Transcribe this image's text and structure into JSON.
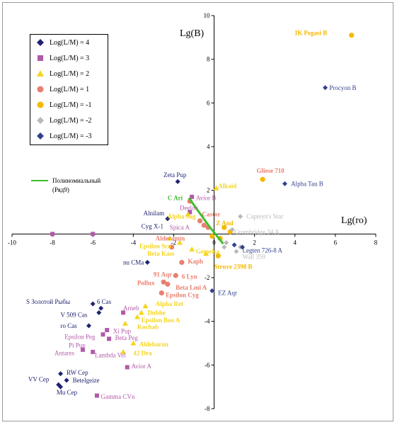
{
  "chart_data": {
    "type": "scatter",
    "x_axis_title": "Lg(ro)",
    "y_axis_title": "Lg(B)",
    "xlim": [
      -10,
      8
    ],
    "ylim": [
      -8,
      10
    ],
    "x_ticks": [
      -10,
      -8,
      -6,
      -4,
      -2,
      0,
      2,
      4,
      6,
      8
    ],
    "y_ticks": [
      -8,
      -6,
      -4,
      -2,
      0,
      2,
      4,
      6,
      8,
      10
    ],
    "x_tick_labels": [
      "-10",
      "-8",
      "-6",
      "-4",
      "-2",
      "0",
      "2",
      "4",
      "6",
      "8"
    ],
    "y_tick_labels": [
      "-8",
      "-6",
      "-4",
      "-2",
      "0",
      "2",
      "4",
      "6",
      "8",
      "10"
    ],
    "grid": false,
    "legend_position": "top-left",
    "series": [
      {
        "name": "Log(L/M) = 4",
        "marker": "diamond",
        "color": "#1f2370",
        "points": [
          [
            -1.8,
            2.4
          ],
          [
            -2.3,
            0.7
          ],
          [
            -3.3,
            -1.3
          ],
          [
            -6.0,
            -3.2
          ],
          [
            -5.6,
            -3.4
          ],
          [
            -5.7,
            -3.6
          ],
          [
            -6.2,
            -4.2
          ],
          [
            -7.6,
            -6.4
          ],
          [
            -7.3,
            -6.7
          ],
          [
            -7.7,
            -6.9
          ],
          [
            -7.6,
            -7.0
          ]
        ]
      },
      {
        "name": "Log(L/M) = 3",
        "marker": "square",
        "color": "#b05ba7",
        "points": [
          [
            -1.1,
            1.7
          ],
          [
            -1.2,
            1.0
          ],
          [
            -4.5,
            -3.6
          ],
          [
            -5.3,
            -4.4
          ],
          [
            -5.5,
            -4.6
          ],
          [
            -5.2,
            -4.8
          ],
          [
            -6.5,
            -5.3
          ],
          [
            -6.0,
            -5.4
          ],
          [
            -4.3,
            -6.1
          ],
          [
            -5.8,
            -7.4
          ],
          [
            -8.0,
            0.0
          ],
          [
            -6.0,
            0.0
          ]
        ]
      },
      {
        "name": "Log(L/M) = 2",
        "marker": "triangle",
        "color": "#f5d51e",
        "points": [
          [
            0.1,
            2.1
          ],
          [
            -1.3,
            0.9
          ],
          [
            -2.2,
            -0.2
          ],
          [
            -1.7,
            -0.4
          ],
          [
            -1.1,
            -0.7
          ],
          [
            -0.4,
            -0.9
          ],
          [
            -3.4,
            -3.3
          ],
          [
            -3.6,
            -3.6
          ],
          [
            -3.8,
            -3.8
          ],
          [
            -4.4,
            -4.1
          ],
          [
            -4.0,
            -5.0
          ],
          [
            -4.5,
            -5.4
          ]
        ]
      },
      {
        "name": "Log(L/M) = 1",
        "marker": "circle",
        "color": "#e8806f",
        "points": [
          [
            -1.2,
            1.5
          ],
          [
            -0.7,
            0.6
          ],
          [
            -0.5,
            0.4
          ],
          [
            -2.1,
            -0.6
          ],
          [
            -1.6,
            -1.3
          ],
          [
            -1.9,
            -1.9
          ],
          [
            -2.5,
            -2.2
          ],
          [
            -2.3,
            -2.3
          ],
          [
            -2.6,
            -2.7
          ],
          [
            -0.3,
            0.3
          ]
        ]
      },
      {
        "name": "Log(L/M) = -1",
        "marker": "circle",
        "color": "#f5b800",
        "points": [
          [
            6.8,
            9.1
          ],
          [
            2.4,
            2.5
          ],
          [
            0.5,
            0.3
          ],
          [
            0.3,
            -0.2
          ],
          [
            0.2,
            -1.0
          ],
          [
            0.8,
            0.1
          ],
          [
            -0.1,
            -0.1
          ]
        ]
      },
      {
        "name": "Log(L/M) = -2",
        "marker": "diamond",
        "color": "#b9b9b9",
        "points": [
          [
            1.3,
            0.8
          ],
          [
            0.9,
            0.2
          ],
          [
            0.6,
            -0.4
          ],
          [
            1.1,
            -0.8
          ],
          [
            1.3,
            -0.6
          ],
          [
            0.5,
            -0.6
          ]
        ]
      },
      {
        "name": "Log(L/M) = -3",
        "marker": "diamond",
        "color": "#34418f",
        "points": [
          [
            5.5,
            6.7
          ],
          [
            3.5,
            2.3
          ],
          [
            1.0,
            -0.5
          ],
          [
            1.4,
            -0.6
          ],
          [
            -0.1,
            -2.6
          ]
        ]
      }
    ],
    "trendline": {
      "name": "Полиномиальный (Ряд9)",
      "color": "#3cbf2a",
      "points": [
        [
          -1.25,
          1.65
        ],
        [
          -0.9,
          1.2
        ],
        [
          -0.55,
          0.75
        ],
        [
          -0.2,
          0.3
        ],
        [
          0.15,
          -0.1
        ],
        [
          0.45,
          -0.45
        ]
      ]
    },
    "annotations": [
      {
        "text": "IK Pegasi B",
        "x": 4.0,
        "y": 9.2,
        "color": "#f5b800",
        "bold": true
      },
      {
        "text": "Procyon B",
        "x": 5.7,
        "y": 6.7,
        "color": "#34418f"
      },
      {
        "text": "Gliese 710",
        "x": 2.1,
        "y": 2.9,
        "color": "#e8806f",
        "bold": true
      },
      {
        "text": "Alpha Tau B",
        "x": 3.8,
        "y": 2.3,
        "color": "#34418f"
      },
      {
        "text": "Zeta Pup",
        "x": -2.5,
        "y": 2.7,
        "color": "#1f2370"
      },
      {
        "text": "Alkaid",
        "x": 0.2,
        "y": 2.2,
        "color": "#f5d51e",
        "bold": true
      },
      {
        "text": "C Ari",
        "x": -2.3,
        "y": 1.65,
        "color": "#3cbf2a",
        "bold": true
      },
      {
        "text": "Avior B",
        "x": -0.9,
        "y": 1.65,
        "color": "#b05ba7"
      },
      {
        "text": "Deelox",
        "x": -1.7,
        "y": 1.2,
        "color": "#b05ba7"
      },
      {
        "text": "Castor",
        "x": -0.6,
        "y": 0.9,
        "color": "#e8806f",
        "bold": true
      },
      {
        "text": "Alnilam",
        "x": -3.5,
        "y": 0.95,
        "color": "#1f2370"
      },
      {
        "text": "Alpha Sag",
        "x": -2.3,
        "y": 0.8,
        "color": "#f5d51e",
        "bold": true
      },
      {
        "text": "Z And",
        "x": 0.1,
        "y": 0.5,
        "color": "#f5b800",
        "bold": true
      },
      {
        "text": "Capteyn's Star",
        "x": 1.6,
        "y": 0.8,
        "color": "#b9b9b9"
      },
      {
        "text": "Cyg X-1",
        "x": -3.6,
        "y": 0.35,
        "color": "#1f2370"
      },
      {
        "text": "Spica A",
        "x": -2.2,
        "y": 0.3,
        "color": "#b05ba7"
      },
      {
        "text": "Grombridge 34 A",
        "x": 1.0,
        "y": 0.1,
        "color": "#b9b9b9"
      },
      {
        "text": "Alderamin",
        "x": -2.9,
        "y": -0.2,
        "color": "#e8806f",
        "bold": true
      },
      {
        "text": "Epsilon Sco",
        "x": -3.7,
        "y": -0.55,
        "color": "#f5d51e",
        "bold": true
      },
      {
        "text": "Beta Kass",
        "x": -3.3,
        "y": -0.9,
        "color": "#f5d51e",
        "bold": true
      },
      {
        "text": "Gemelsa",
        "x": -0.9,
        "y": -0.8,
        "color": "#f5d51e",
        "bold": true
      },
      {
        "text": "Legten 726-8 A",
        "x": 1.4,
        "y": -0.75,
        "color": "#34418f"
      },
      {
        "text": "Wall 359",
        "x": 1.4,
        "y": -1.05,
        "color": "#b9b9b9"
      },
      {
        "text": "Kaph",
        "x": -1.3,
        "y": -1.25,
        "color": "#e8806f",
        "bold": true
      },
      {
        "text": "nu CMa",
        "x": -4.5,
        "y": -1.3,
        "color": "#1f2370"
      },
      {
        "text": "Struve 2398 B",
        "x": 0.0,
        "y": -1.5,
        "color": "#f5b800",
        "bold": true
      },
      {
        "text": "91 Aqr",
        "x": -3.0,
        "y": -1.85,
        "color": "#e8806f",
        "bold": true
      },
      {
        "text": "6 Lyn",
        "x": -1.6,
        "y": -1.95,
        "color": "#e8806f",
        "bold": true
      },
      {
        "text": "Pollux",
        "x": -3.8,
        "y": -2.25,
        "color": "#e8806f",
        "bold": true
      },
      {
        "text": "Beta Lmi A",
        "x": -1.9,
        "y": -2.45,
        "color": "#e8806f",
        "bold": true
      },
      {
        "text": "EZ Aqr",
        "x": 0.2,
        "y": -2.7,
        "color": "#34418f"
      },
      {
        "text": "Epsilon Cyg",
        "x": -2.4,
        "y": -2.8,
        "color": "#e8806f",
        "bold": true
      },
      {
        "text": "S Золотой Рыбы",
        "x": -9.3,
        "y": -3.1,
        "color": "#1f2370"
      },
      {
        "text": "6 Cas",
        "x": -5.8,
        "y": -3.1,
        "color": "#1f2370"
      },
      {
        "text": "Alpha Ret",
        "x": -2.9,
        "y": -3.2,
        "color": "#f5d51e",
        "bold": true
      },
      {
        "text": "Arneb",
        "x": -4.5,
        "y": -3.4,
        "color": "#b05ba7"
      },
      {
        "text": "V 509 Cas",
        "x": -7.6,
        "y": -3.7,
        "color": "#1f2370"
      },
      {
        "text": "Dubhe",
        "x": -3.3,
        "y": -3.6,
        "color": "#f5d51e",
        "bold": true
      },
      {
        "text": "Epsilon Boo A",
        "x": -3.6,
        "y": -3.95,
        "color": "#f5d51e",
        "bold": true
      },
      {
        "text": "ro Cas",
        "x": -7.6,
        "y": -4.2,
        "color": "#1f2370"
      },
      {
        "text": "Kochab",
        "x": -3.8,
        "y": -4.25,
        "color": "#f5d51e",
        "bold": true
      },
      {
        "text": "Xi Pup",
        "x": -5.0,
        "y": -4.45,
        "color": "#b05ba7"
      },
      {
        "text": "Epsilon Peg",
        "x": -7.4,
        "y": -4.7,
        "color": "#b05ba7"
      },
      {
        "text": "Beta Peg",
        "x": -4.9,
        "y": -4.75,
        "color": "#b05ba7"
      },
      {
        "text": "Aldebaran",
        "x": -3.7,
        "y": -5.05,
        "color": "#f5d51e",
        "bold": true
      },
      {
        "text": "Pi Pup",
        "x": -7.2,
        "y": -5.1,
        "color": "#b05ba7"
      },
      {
        "text": "42 Dra",
        "x": -4.0,
        "y": -5.45,
        "color": "#f5d51e",
        "bold": true
      },
      {
        "text": "Antares",
        "x": -7.9,
        "y": -5.45,
        "color": "#b05ba7"
      },
      {
        "text": "Lambda Vel",
        "x": -5.9,
        "y": -5.55,
        "color": "#b05ba7"
      },
      {
        "text": "Avior A",
        "x": -4.1,
        "y": -6.05,
        "color": "#b05ba7"
      },
      {
        "text": "RW Cep",
        "x": -7.3,
        "y": -6.35,
        "color": "#1f2370"
      },
      {
        "text": "VV Cep",
        "x": -9.2,
        "y": -6.65,
        "color": "#1f2370"
      },
      {
        "text": "Betelgeize",
        "x": -7.0,
        "y": -6.7,
        "color": "#1f2370"
      },
      {
        "text": "Mu Cep",
        "x": -7.8,
        "y": -7.25,
        "color": "#1f2370"
      },
      {
        "text": "Gamma CVn",
        "x": -5.6,
        "y": -7.45,
        "color": "#b05ba7"
      }
    ]
  }
}
